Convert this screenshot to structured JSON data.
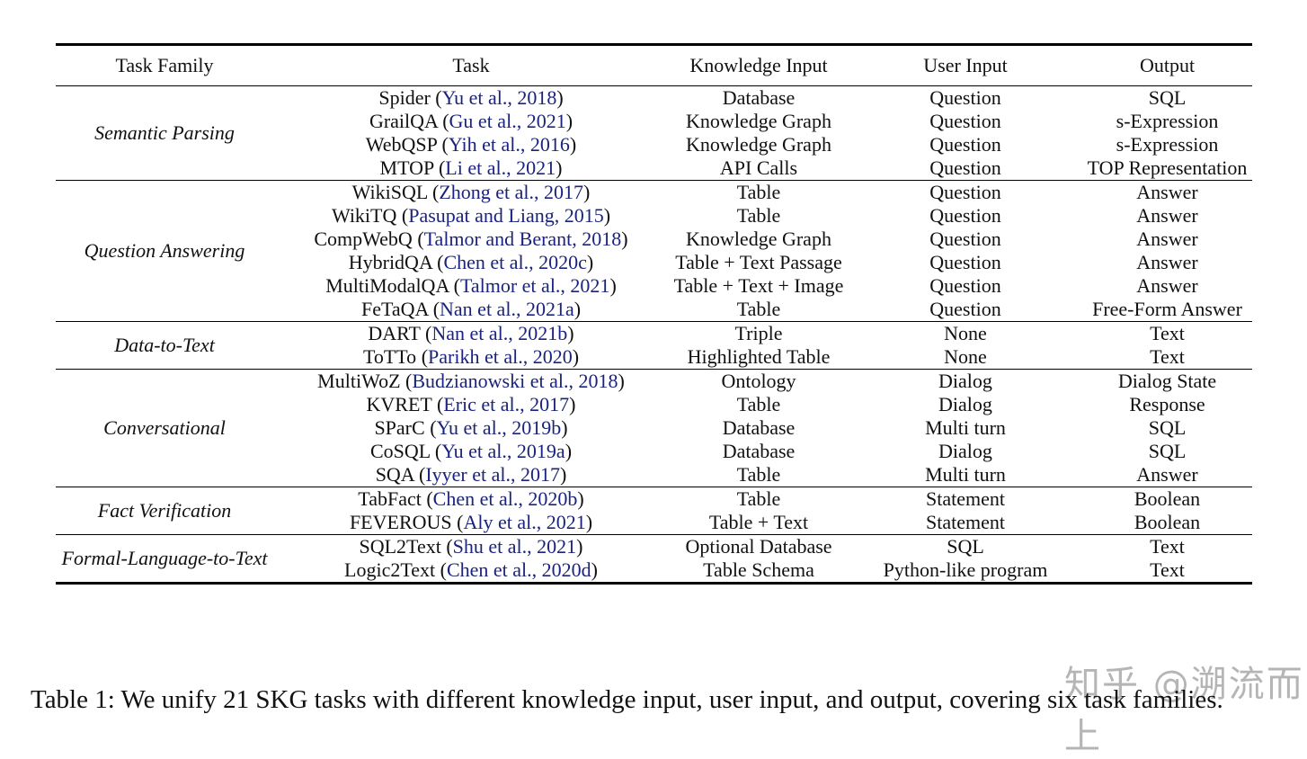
{
  "table": {
    "headers": [
      "Task Family",
      "Task",
      "Knowledge Input",
      "User Input",
      "Output"
    ],
    "groups": [
      {
        "family": "Semantic Parsing",
        "rows": [
          {
            "task": "Spider",
            "cite": "Yu et al., 2018",
            "knowledge": "Database",
            "user": "Question",
            "output": "SQL"
          },
          {
            "task": "GrailQA",
            "cite": "Gu et al., 2021",
            "knowledge": "Knowledge Graph",
            "user": "Question",
            "output": "s-Expression"
          },
          {
            "task": "WebQSP",
            "cite": "Yih et al., 2016",
            "knowledge": "Knowledge Graph",
            "user": "Question",
            "output": "s-Expression"
          },
          {
            "task": "MTOP",
            "cite": "Li et al., 2021",
            "knowledge": "API Calls",
            "user": "Question",
            "output": "TOP Representation"
          }
        ]
      },
      {
        "family": "Question Answering",
        "rows": [
          {
            "task": "WikiSQL",
            "cite": "Zhong et al., 2017",
            "knowledge": "Table",
            "user": "Question",
            "output": "Answer"
          },
          {
            "task": "WikiTQ",
            "cite": "Pasupat and Liang, 2015",
            "knowledge": "Table",
            "user": "Question",
            "output": "Answer"
          },
          {
            "task": "CompWebQ",
            "cite": "Talmor and Berant, 2018",
            "knowledge": "Knowledge Graph",
            "user": "Question",
            "output": "Answer"
          },
          {
            "task": "HybridQA",
            "cite": "Chen et al., 2020c",
            "knowledge": "Table + Text Passage",
            "user": "Question",
            "output": "Answer"
          },
          {
            "task": "MultiModalQA",
            "cite": "Talmor et al., 2021",
            "knowledge": "Table + Text + Image",
            "user": "Question",
            "output": "Answer"
          },
          {
            "task": "FeTaQA",
            "cite": "Nan et al., 2021a",
            "knowledge": "Table",
            "user": "Question",
            "output": "Free-Form Answer"
          }
        ]
      },
      {
        "family": "Data-to-Text",
        "rows": [
          {
            "task": "DART",
            "cite": "Nan et al., 2021b",
            "knowledge": "Triple",
            "user": "None",
            "output": "Text"
          },
          {
            "task": "ToTTo",
            "cite": "Parikh et al., 2020",
            "knowledge": "Highlighted Table",
            "user": "None",
            "output": "Text"
          }
        ]
      },
      {
        "family": "Conversational",
        "rows": [
          {
            "task": "MultiWoZ",
            "cite": "Budzianowski et al., 2018",
            "knowledge": "Ontology",
            "user": "Dialog",
            "output": "Dialog State"
          },
          {
            "task": "KVRET",
            "cite": "Eric et al., 2017",
            "knowledge": "Table",
            "user": "Dialog",
            "output": "Response"
          },
          {
            "task": "SParC",
            "cite": "Yu et al., 2019b",
            "knowledge": "Database",
            "user": "Multi turn",
            "output": "SQL"
          },
          {
            "task": "CoSQL",
            "cite": "Yu et al., 2019a",
            "knowledge": "Database",
            "user": "Dialog",
            "output": "SQL"
          },
          {
            "task": "SQA",
            "cite": "Iyyer et al., 2017",
            "knowledge": "Table",
            "user": "Multi turn",
            "output": "Answer"
          }
        ]
      },
      {
        "family": "Fact Verification",
        "rows": [
          {
            "task": "TabFact",
            "cite": "Chen et al., 2020b",
            "knowledge": "Table",
            "user": "Statement",
            "output": "Boolean"
          },
          {
            "task": "FEVEROUS",
            "cite": "Aly et al., 2021",
            "knowledge": "Table + Text",
            "user": "Statement",
            "output": "Boolean"
          }
        ]
      },
      {
        "family": "Formal-Language-to-Text",
        "rows": [
          {
            "task": "SQL2Text",
            "cite": "Shu et al., 2021",
            "knowledge": "Optional Database",
            "user": "SQL",
            "output": "Text"
          },
          {
            "task": "Logic2Text",
            "cite": "Chen et al., 2020d",
            "knowledge": "Table Schema",
            "user": "Python-like program",
            "output": "Text"
          }
        ]
      }
    ]
  },
  "caption": "Table 1: We unify 21 SKG tasks with different knowledge input, user input, and output, covering six task families.",
  "watermark": "知乎 @溯流而上"
}
